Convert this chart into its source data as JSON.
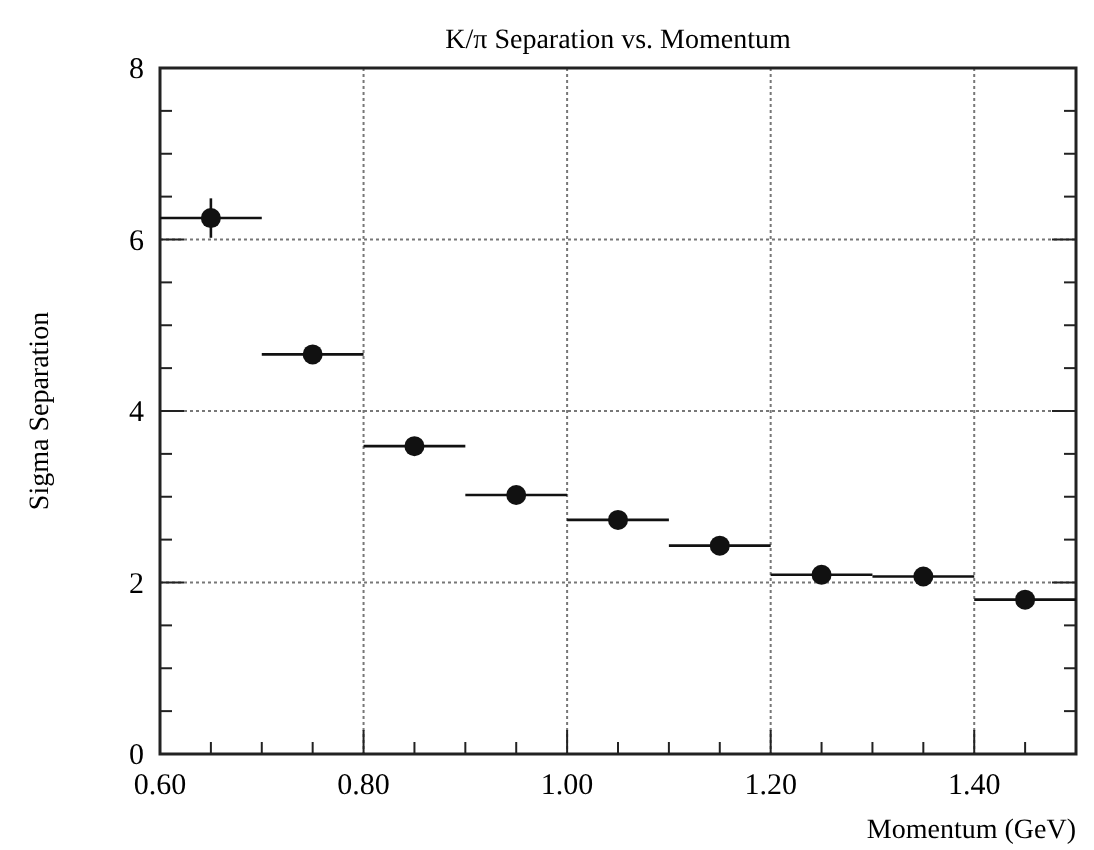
{
  "chart_data": {
    "type": "scatter",
    "title": "K/π Separation vs. Momentum",
    "xlabel": "Momentum (GeV)",
    "ylabel": "Sigma Separation",
    "x": [
      0.65,
      0.75,
      0.85,
      0.95,
      1.05,
      1.15,
      1.25,
      1.35,
      1.45
    ],
    "values": [
      6.25,
      4.66,
      3.59,
      3.02,
      2.73,
      2.43,
      2.09,
      2.07,
      1.8
    ],
    "errors": [
      0.23,
      null,
      null,
      null,
      null,
      null,
      null,
      null,
      null
    ],
    "xerrors": [
      0.05,
      0.05,
      0.05,
      0.05,
      0.05,
      0.05,
      0.05,
      0.05,
      0.05
    ],
    "color": "#111111",
    "marker": "circle",
    "xlim": [
      0.6,
      1.5
    ],
    "xticks": [
      {
        "value": 0.6,
        "label": "0.60"
      },
      {
        "value": 0.8,
        "label": "0.80"
      },
      {
        "value": 1.0,
        "label": "1.00"
      },
      {
        "value": 1.2,
        "label": "1.20"
      },
      {
        "value": 1.4,
        "label": "1.40"
      }
    ],
    "ylim": [
      0,
      8
    ],
    "yticks": [
      0,
      2,
      4,
      6,
      8
    ],
    "grid": true
  }
}
